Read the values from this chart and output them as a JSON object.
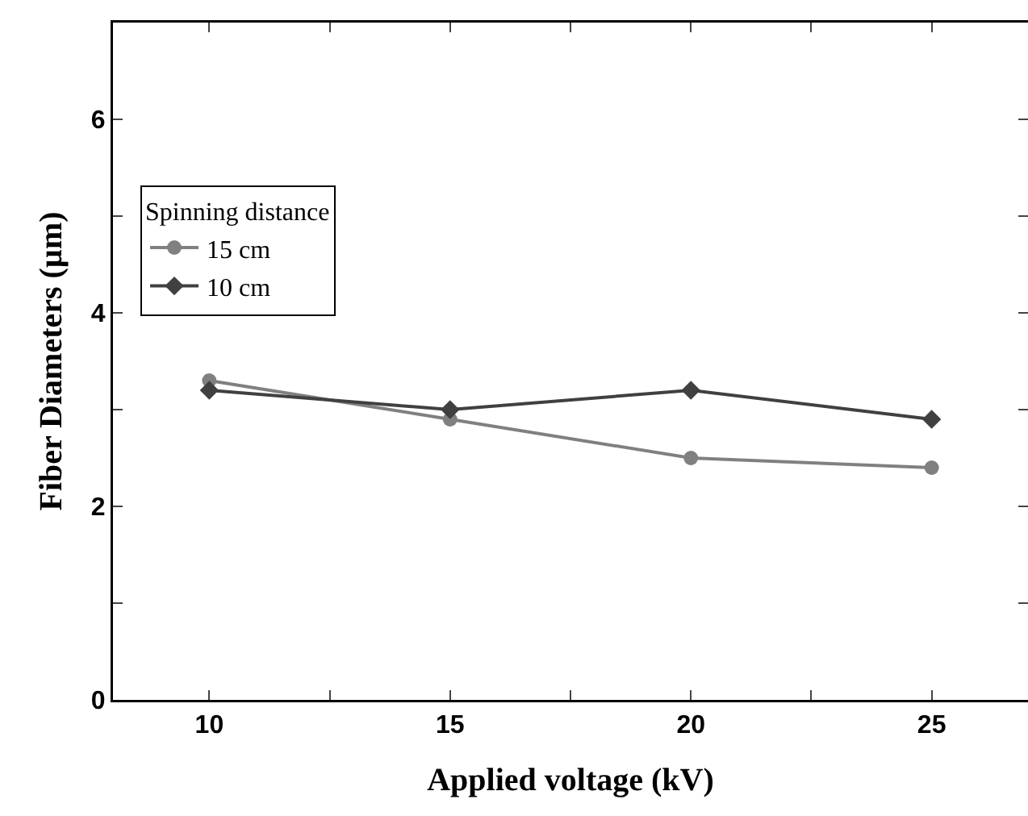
{
  "chart_data": {
    "type": "line",
    "xlabel": "Applied voltage (kV)",
    "ylabel": "Fiber Diameters (µm)",
    "legend_title": "Spinning distance",
    "x": [
      10,
      15,
      20,
      25
    ],
    "series": [
      {
        "name": "15 cm",
        "color": "#808080",
        "marker": "circle",
        "values": [
          3.3,
          2.9,
          2.5,
          2.4
        ]
      },
      {
        "name": "10 cm",
        "color": "#404040",
        "marker": "diamond",
        "values": [
          3.2,
          3.0,
          3.2,
          2.9
        ]
      }
    ],
    "xlim": [
      8,
      27
    ],
    "xticks": [
      10,
      {
        "value": 12.5,
        "label": null
      },
      15,
      {
        "value": 17.5,
        "label": null
      },
      20,
      {
        "value": 22.5,
        "label": null
      },
      25
    ],
    "ylim": [
      0,
      7
    ],
    "yticks": [
      0,
      {
        "value": 1,
        "label": null
      },
      2,
      {
        "value": 3,
        "label": null
      },
      4,
      {
        "value": 5,
        "label": null
      },
      6
    ],
    "grid": false,
    "legend": "top left",
    "line_style": "solid"
  }
}
